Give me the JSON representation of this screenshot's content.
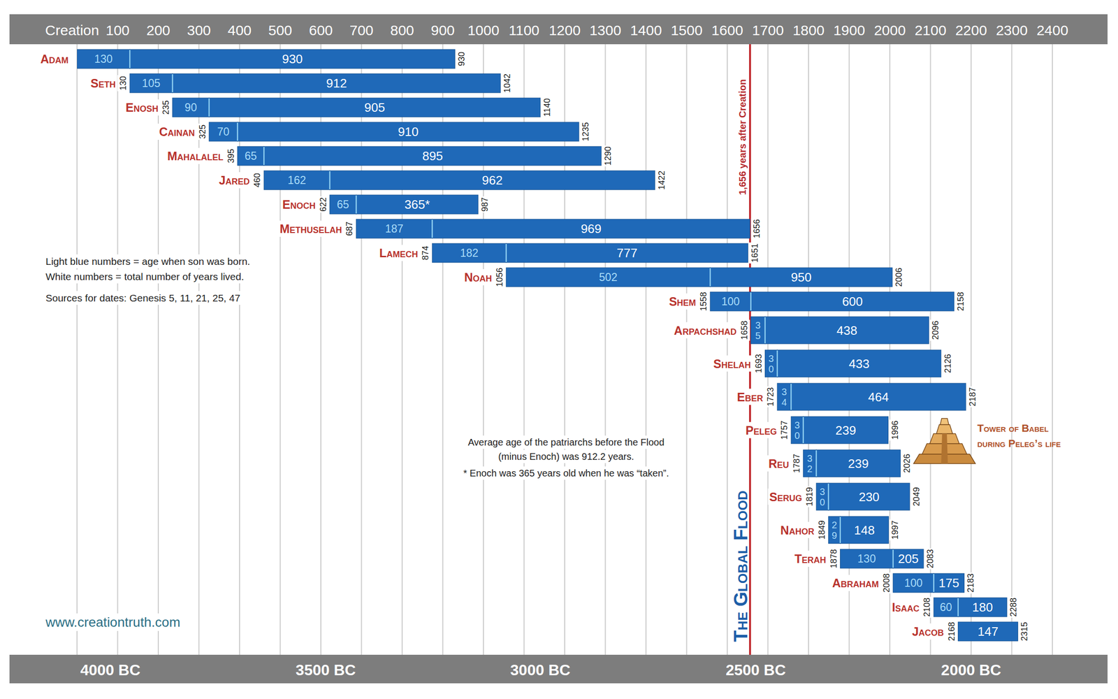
{
  "chart_data": {
    "type": "timeline",
    "grid": true,
    "data_labels": true,
    "xlim": [
      0,
      2400
    ],
    "xticks": [
      {
        "value": 0,
        "label": "Creation"
      },
      100,
      200,
      300,
      400,
      500,
      600,
      700,
      800,
      900,
      1000,
      1100,
      1200,
      1300,
      1400,
      1500,
      1600,
      1700,
      1800,
      1900,
      2000,
      2100,
      2200,
      2300,
      2400
    ],
    "x2ticks": [
      {
        "value": 82,
        "label": "4000 BC"
      },
      {
        "value": 612,
        "label": "3500 BC"
      },
      {
        "value": 1140,
        "label": "3000 BC"
      },
      {
        "value": 1670,
        "label": "2500 BC"
      },
      {
        "value": 2200,
        "label": "2000 BC"
      }
    ],
    "rows": [
      {
        "name": "Adam",
        "born": 0,
        "son_age": 130,
        "lifespan": 930,
        "died": 930
      },
      {
        "name": "Seth",
        "born": 130,
        "son_age": 105,
        "lifespan": 912,
        "died": 1042
      },
      {
        "name": "Enosh",
        "born": 235,
        "son_age": 90,
        "lifespan": 905,
        "died": 1140
      },
      {
        "name": "Cainan",
        "born": 325,
        "son_age": 70,
        "lifespan": 910,
        "died": 1235
      },
      {
        "name": "Mahalalel",
        "born": 395,
        "son_age": 65,
        "lifespan": 895,
        "died": 1290
      },
      {
        "name": "Jared",
        "born": 460,
        "son_age": 162,
        "lifespan": 962,
        "died": 1422
      },
      {
        "name": "Enoch",
        "born": 622,
        "son_age": 65,
        "lifespan": 365,
        "lifespan_label": "365*",
        "died": 987
      },
      {
        "name": "Methuselah",
        "born": 687,
        "son_age": 187,
        "lifespan": 969,
        "died": 1656
      },
      {
        "name": "Lamech",
        "born": 874,
        "son_age": 182,
        "lifespan": 777,
        "died": 1651
      },
      {
        "name": "Noah",
        "born": 1056,
        "son_age": 502,
        "lifespan": 950,
        "died": 2006
      },
      {
        "name": "Shem",
        "born": 1558,
        "son_age": 100,
        "lifespan": 600,
        "died": 2158
      },
      {
        "name": "Arpachshad",
        "born": 1658,
        "son_age": 35,
        "lifespan": 438,
        "died": 2096
      },
      {
        "name": "Shelah",
        "born": 1693,
        "son_age": 30,
        "lifespan": 433,
        "died": 2126
      },
      {
        "name": "Eber",
        "born": 1723,
        "son_age": 34,
        "lifespan": 464,
        "died": 2187
      },
      {
        "name": "Peleg",
        "born": 1757,
        "son_age": 30,
        "lifespan": 239,
        "died": 1996
      },
      {
        "name": "Reu",
        "born": 1787,
        "son_age": 32,
        "lifespan": 239,
        "died": 2026
      },
      {
        "name": "Serug",
        "born": 1819,
        "son_age": 30,
        "lifespan": 230,
        "died": 2049
      },
      {
        "name": "Nahor",
        "born": 1849,
        "son_age": 29,
        "lifespan": 148,
        "died": 1997
      },
      {
        "name": "Terah",
        "born": 1878,
        "son_age": 130,
        "lifespan": 205,
        "died": 2083
      },
      {
        "name": "Abraham",
        "born": 2008,
        "son_age": 100,
        "lifespan": 175,
        "died": 2183
      },
      {
        "name": "Isaac",
        "born": 2108,
        "son_age": 60,
        "lifespan": 180,
        "died": 2288
      },
      {
        "name": "Jacob",
        "born": 2168,
        "son_age": null,
        "lifespan": 147,
        "died": 2315
      }
    ],
    "flood": {
      "value": 1656,
      "label": "1,656 years after Creation",
      "caption": "The Global Flood"
    },
    "key": [
      "Light blue numbers = age when son was born.",
      "White numbers = total number of years lived."
    ],
    "sources": "Sources for dates: Genesis 5, 11, 21, 25, 47",
    "notes": [
      "Average age of the patriarchs before the Flood",
      "(minus Enoch) was 912.2 years.",
      "* Enoch was 365 years old when he was “taken”."
    ],
    "tower": [
      "Tower of Babel",
      "during Peleg’s life"
    ],
    "website": "www.creationtruth.com"
  }
}
